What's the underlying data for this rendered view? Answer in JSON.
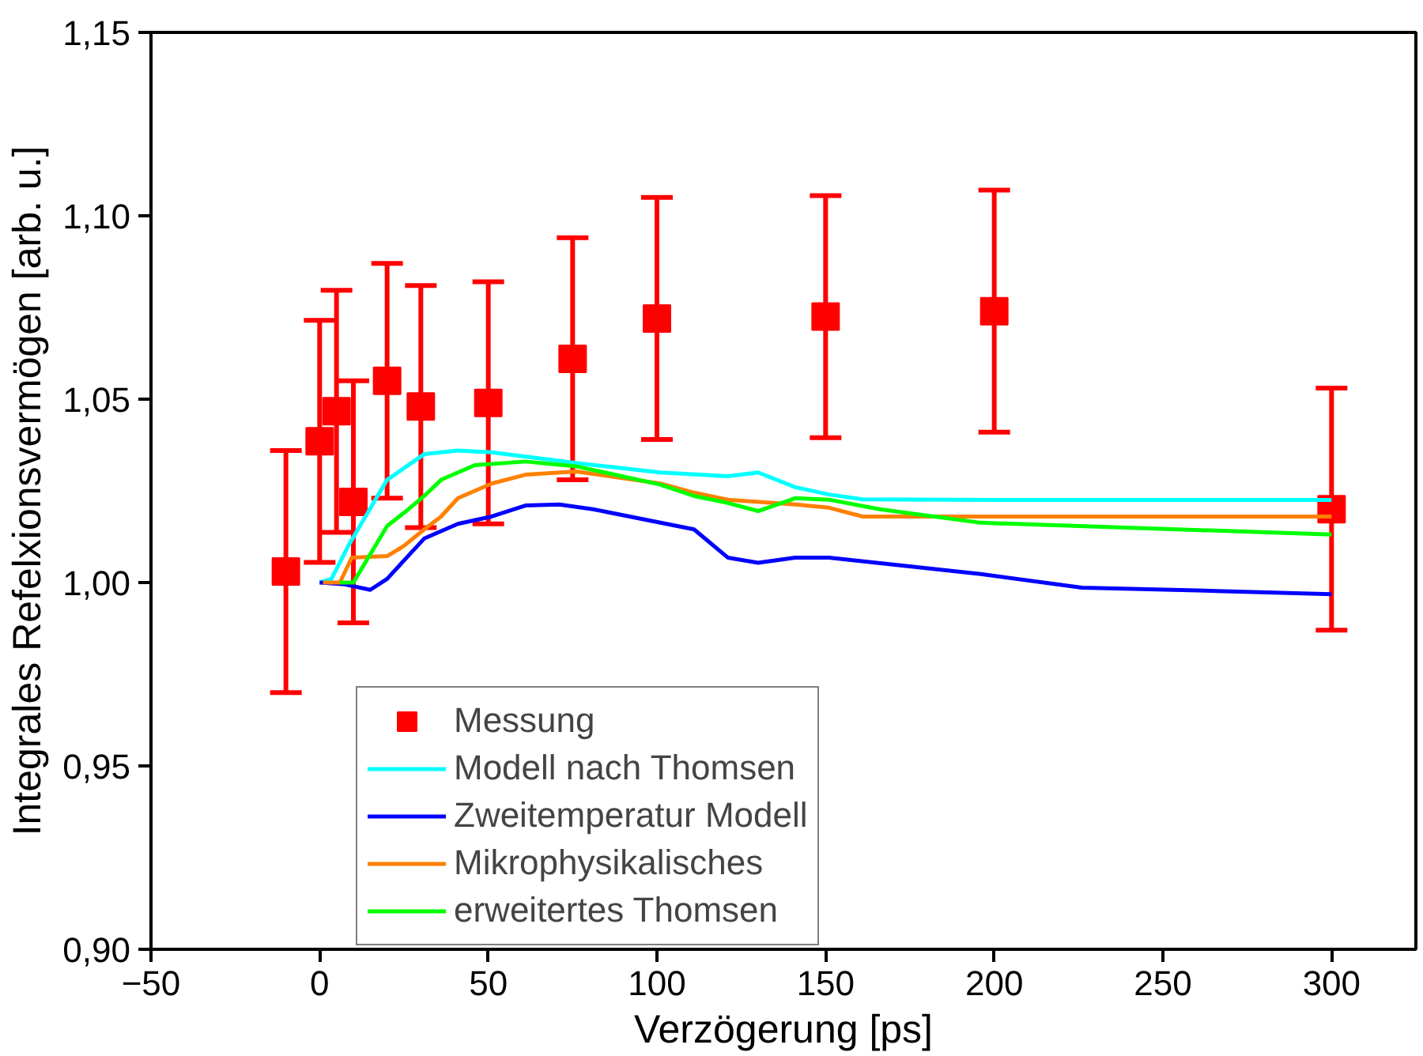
{
  "chart_data": {
    "type": "line",
    "xlabel": "Verzögerung [ps]",
    "ylabel": "Integrales Refelxionsvermögen [arb. u.]",
    "xlim": [
      -50,
      325
    ],
    "ylim": [
      0.9,
      1.15
    ],
    "xticks": [
      -50,
      0,
      50,
      100,
      150,
      200,
      250,
      300
    ],
    "yticks": [
      {
        "value": 0.9,
        "label": "0,90"
      },
      {
        "value": 0.95,
        "label": "0,95"
      },
      {
        "value": 1.0,
        "label": "1,00"
      },
      {
        "value": 1.05,
        "label": "1,05"
      },
      {
        "value": 1.1,
        "label": "1,10"
      },
      {
        "value": 1.15,
        "label": "1,15"
      }
    ],
    "grid": false,
    "legend": "bottom",
    "series": [
      {
        "name": "Messung",
        "type": "scatter",
        "marker": "square",
        "color": "#ff0000",
        "x": [
          -10,
          0,
          5,
          10,
          20,
          30,
          50,
          75,
          100,
          150,
          200,
          300
        ],
        "values": [
          1.003,
          1.0385,
          1.0467,
          1.022,
          1.055,
          1.048,
          1.049,
          1.061,
          1.072,
          1.0725,
          1.074,
          1.02
        ],
        "errors": [
          0.033,
          0.033,
          0.033,
          0.033,
          0.032,
          0.033,
          0.033,
          0.033,
          0.033,
          0.033,
          0.033,
          0.033
        ]
      },
      {
        "name": "Modell nach Thomsen",
        "color": "#00ffff",
        "x": [
          0,
          3.5,
          8.5,
          20,
          31,
          41,
          51,
          76,
          101,
          121,
          130,
          141,
          151,
          161,
          200,
          300
        ],
        "values": [
          1.0,
          1.001,
          1.01,
          1.028,
          1.035,
          1.036,
          1.0355,
          1.0326,
          1.03,
          1.029,
          1.03,
          1.026,
          1.024,
          1.0227,
          1.0225,
          1.0225
        ]
      },
      {
        "name": "Zweitemperatur Modell",
        "color": "#0000ff",
        "x": [
          0,
          7.5,
          15,
          20,
          31,
          41,
          51,
          61,
          71,
          81,
          111,
          121,
          130,
          141,
          151,
          196,
          226,
          266,
          300
        ],
        "values": [
          1.0,
          0.9995,
          0.998,
          1.001,
          1.012,
          1.016,
          1.018,
          1.021,
          1.0213,
          1.02,
          1.0145,
          1.0068,
          1.0054,
          1.0068,
          1.0068,
          1.0023,
          0.9986,
          0.9977,
          0.9968
        ]
      },
      {
        "name": "Mikrophysikalisches",
        "color": "#ff8000",
        "x": [
          1,
          6,
          9.5,
          20,
          25,
          31,
          36,
          41,
          51,
          61,
          76,
          101,
          111,
          121,
          141,
          151,
          161,
          300
        ],
        "values": [
          1.0,
          1.0,
          1.0068,
          1.0072,
          1.01,
          1.0145,
          1.018,
          1.023,
          1.027,
          1.0294,
          1.0303,
          1.027,
          1.0245,
          1.0226,
          1.0213,
          1.0204,
          1.018,
          1.018
        ]
      },
      {
        "name": "erweitertes Thomsen",
        "color": "#00ff00",
        "x": [
          6,
          10,
          20,
          25,
          31,
          36,
          46,
          61,
          76,
          101,
          111,
          121,
          130,
          141,
          151,
          166,
          196,
          300
        ],
        "values": [
          1.0,
          1.0,
          1.0154,
          1.019,
          1.0236,
          1.028,
          1.032,
          1.033,
          1.0317,
          1.0267,
          1.0236,
          1.0217,
          1.0195,
          1.023,
          1.0226,
          1.02,
          1.0163,
          1.0131
        ]
      }
    ]
  }
}
